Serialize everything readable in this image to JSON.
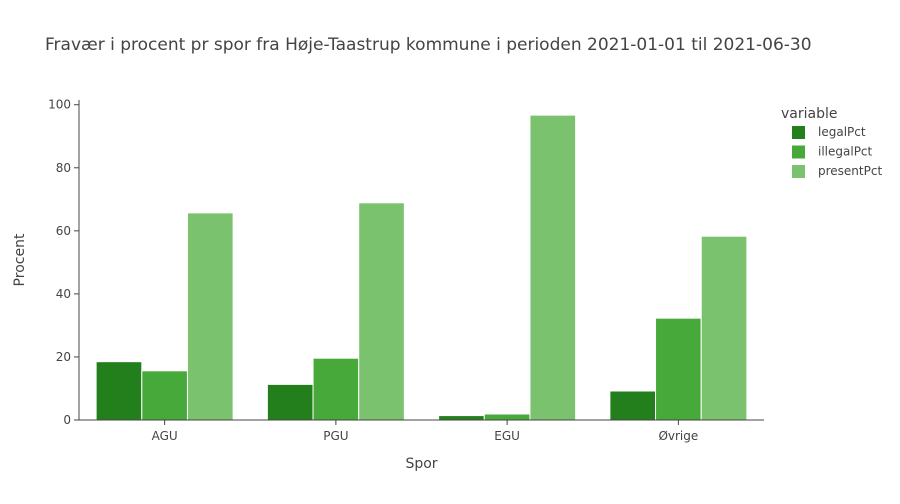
{
  "chart_data": {
    "type": "bar",
    "title": "Fravær i procent pr spor fra Høje-Taastrup kommune i perioden 2021-01-01 til 2021-06-30",
    "xlabel": "Spor",
    "ylabel": "Procent",
    "categories": [
      "AGU",
      "PGU",
      "EGU",
      "Øvrige"
    ],
    "ylim": [
      0,
      101.5
    ],
    "yticks": [
      0,
      20,
      40,
      60,
      80,
      100
    ],
    "grid": false,
    "legend": {
      "title": "variable",
      "position": "top-right"
    },
    "series": [
      {
        "name": "legalPct",
        "color": "#237f1c",
        "values": [
          18.5,
          11.3,
          1.4,
          9.2
        ]
      },
      {
        "name": "illegalPct",
        "color": "#46a93a",
        "values": [
          15.6,
          19.6,
          1.9,
          32.3
        ]
      },
      {
        "name": "presentPct",
        "color": "#7bc26e",
        "values": [
          65.7,
          68.9,
          96.7,
          58.3
        ]
      }
    ]
  }
}
